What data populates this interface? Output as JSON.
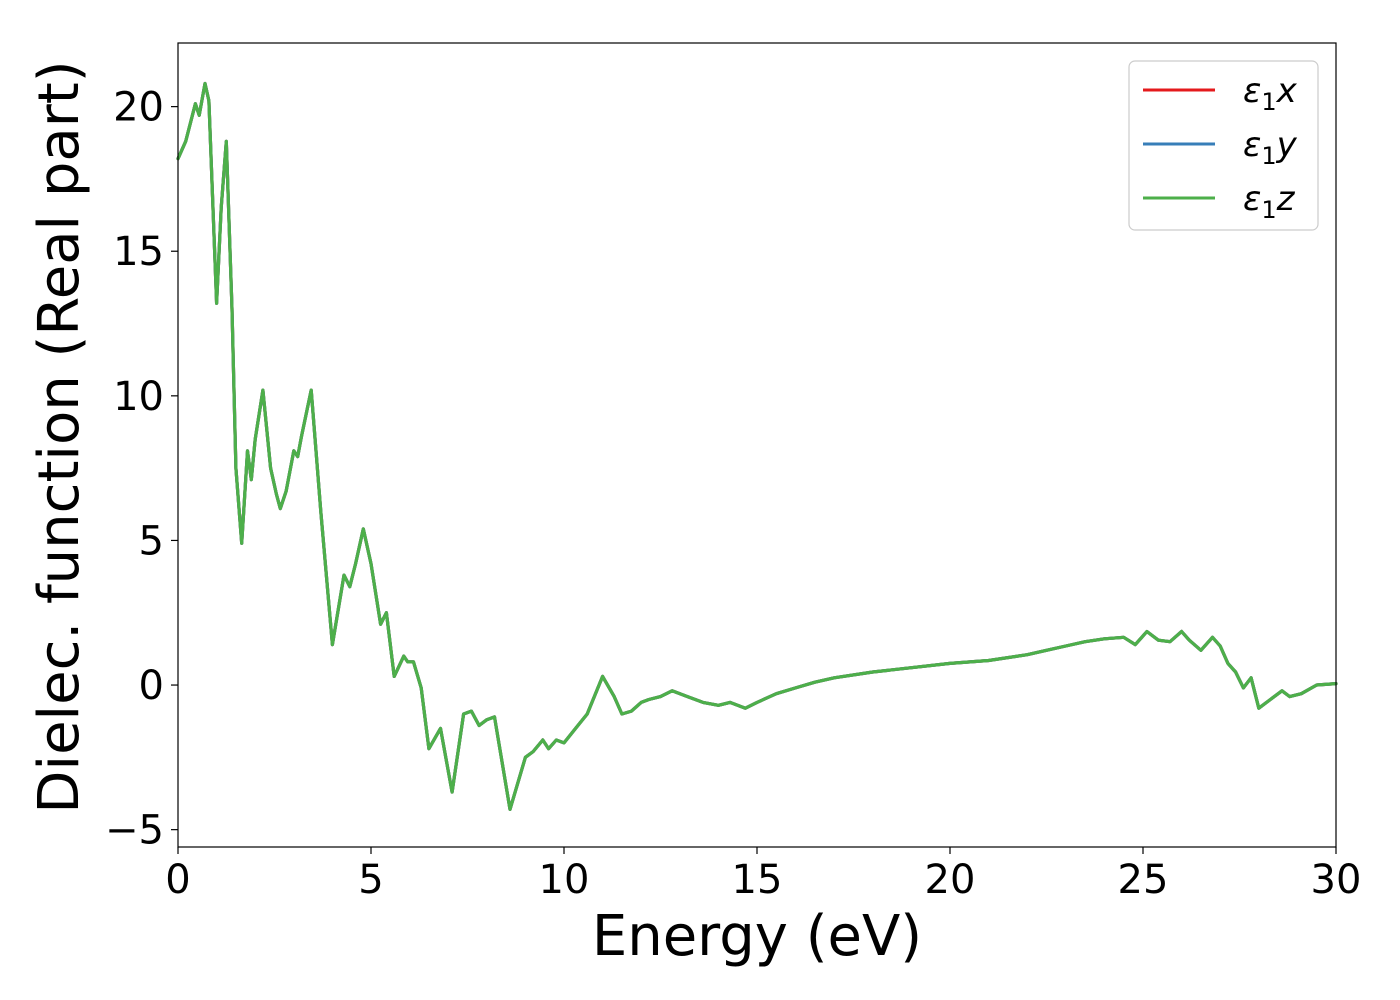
{
  "chart_data": {
    "type": "line",
    "xlabel": "Energy (eV)",
    "ylabel": "Dielec. function (Real part)",
    "xlim": [
      0,
      30
    ],
    "ylim": [
      -5.6,
      22.2
    ],
    "xticks": [
      0,
      5,
      10,
      15,
      20,
      25,
      30
    ],
    "yticks": [
      -5,
      0,
      5,
      10,
      15,
      20
    ],
    "xtick_labels": [
      "0",
      "5",
      "10",
      "15",
      "20",
      "25",
      "30"
    ],
    "ytick_labels": [
      "−5",
      "0",
      "5",
      "10",
      "15",
      "20"
    ],
    "grid": false,
    "legend_position": "top-right",
    "x": [
      0,
      0.2,
      0.45,
      0.55,
      0.7,
      0.8,
      1.0,
      1.12,
      1.25,
      1.4,
      1.5,
      1.65,
      1.8,
      1.9,
      2.0,
      2.2,
      2.4,
      2.55,
      2.65,
      2.8,
      3.0,
      3.1,
      3.2,
      3.45,
      3.7,
      4.0,
      4.3,
      4.45,
      4.6,
      4.8,
      5.0,
      5.25,
      5.4,
      5.6,
      5.85,
      5.95,
      6.1,
      6.3,
      6.5,
      6.8,
      7.1,
      7.4,
      7.6,
      7.8,
      8.0,
      8.2,
      8.6,
      9.0,
      9.2,
      9.45,
      9.6,
      9.8,
      10.0,
      10.3,
      10.6,
      11.0,
      11.3,
      11.5,
      11.75,
      12.0,
      12.2,
      12.5,
      12.8,
      13.2,
      13.6,
      14.0,
      14.3,
      14.7,
      15.0,
      15.5,
      16.0,
      16.5,
      17.0,
      18.0,
      19.0,
      20.0,
      21.0,
      22.0,
      22.5,
      23.0,
      23.5,
      24.0,
      24.5,
      24.8,
      25.1,
      25.4,
      25.7,
      26.0,
      26.2,
      26.5,
      26.8,
      27.0,
      27.2,
      27.4,
      27.6,
      27.8,
      28.0,
      28.3,
      28.6,
      28.8,
      29.1,
      29.5,
      30.0
    ],
    "series": [
      {
        "name": "x",
        "color": "#e41a1c",
        "values": [
          18.2,
          18.8,
          20.1,
          19.7,
          20.8,
          20.2,
          13.2,
          16.5,
          18.8,
          13.0,
          7.5,
          4.9,
          8.1,
          7.1,
          8.5,
          10.2,
          7.5,
          6.6,
          6.1,
          6.7,
          8.1,
          7.9,
          8.6,
          10.2,
          6.0,
          1.4,
          3.8,
          3.4,
          4.2,
          5.4,
          4.2,
          2.1,
          2.5,
          0.3,
          1.0,
          0.8,
          0.8,
          -0.1,
          -2.2,
          -1.5,
          -3.7,
          -1.0,
          -0.9,
          -1.4,
          -1.2,
          -1.1,
          -4.3,
          -2.5,
          -2.3,
          -1.9,
          -2.2,
          -1.9,
          -2.0,
          -1.5,
          -1.0,
          0.3,
          -0.4,
          -1.0,
          -0.9,
          -0.6,
          -0.5,
          -0.4,
          -0.2,
          -0.4,
          -0.6,
          -0.7,
          -0.6,
          -0.8,
          -0.6,
          -0.3,
          -0.1,
          0.1,
          0.25,
          0.45,
          0.6,
          0.75,
          0.85,
          1.05,
          1.2,
          1.35,
          1.5,
          1.6,
          1.65,
          1.4,
          1.85,
          1.55,
          1.5,
          1.85,
          1.55,
          1.2,
          1.65,
          1.35,
          0.75,
          0.45,
          -0.1,
          0.25,
          -0.8,
          -0.5,
          -0.2,
          -0.4,
          -0.3,
          0.0,
          0.05
        ]
      },
      {
        "name": "y",
        "color": "#377eb8",
        "values": [
          18.2,
          18.8,
          20.1,
          19.7,
          20.8,
          20.2,
          13.2,
          16.5,
          18.8,
          13.0,
          7.5,
          4.9,
          8.1,
          7.1,
          8.5,
          10.2,
          7.5,
          6.6,
          6.1,
          6.7,
          8.1,
          7.9,
          8.6,
          10.2,
          6.0,
          1.4,
          3.8,
          3.4,
          4.2,
          5.4,
          4.2,
          2.1,
          2.5,
          0.3,
          1.0,
          0.8,
          0.8,
          -0.1,
          -2.2,
          -1.5,
          -3.7,
          -1.0,
          -0.9,
          -1.4,
          -1.2,
          -1.1,
          -4.3,
          -2.5,
          -2.3,
          -1.9,
          -2.2,
          -1.9,
          -2.0,
          -1.5,
          -1.0,
          0.3,
          -0.4,
          -1.0,
          -0.9,
          -0.6,
          -0.5,
          -0.4,
          -0.2,
          -0.4,
          -0.6,
          -0.7,
          -0.6,
          -0.8,
          -0.6,
          -0.3,
          -0.1,
          0.1,
          0.25,
          0.45,
          0.6,
          0.75,
          0.85,
          1.05,
          1.2,
          1.35,
          1.5,
          1.6,
          1.65,
          1.4,
          1.85,
          1.55,
          1.5,
          1.85,
          1.55,
          1.2,
          1.65,
          1.35,
          0.75,
          0.45,
          -0.1,
          0.25,
          -0.8,
          -0.5,
          -0.2,
          -0.4,
          -0.3,
          0.0,
          0.05
        ]
      },
      {
        "name": "z",
        "color": "#4daf4a",
        "values": [
          18.2,
          18.8,
          20.1,
          19.7,
          20.8,
          20.2,
          13.2,
          16.5,
          18.8,
          13.0,
          7.5,
          4.9,
          8.1,
          7.1,
          8.5,
          10.2,
          7.5,
          6.6,
          6.1,
          6.7,
          8.1,
          7.9,
          8.6,
          10.2,
          6.0,
          1.4,
          3.8,
          3.4,
          4.2,
          5.4,
          4.2,
          2.1,
          2.5,
          0.3,
          1.0,
          0.8,
          0.8,
          -0.1,
          -2.2,
          -1.5,
          -3.7,
          -1.0,
          -0.9,
          -1.4,
          -1.2,
          -1.1,
          -4.3,
          -2.5,
          -2.3,
          -1.9,
          -2.2,
          -1.9,
          -2.0,
          -1.5,
          -1.0,
          0.3,
          -0.4,
          -1.0,
          -0.9,
          -0.6,
          -0.5,
          -0.4,
          -0.2,
          -0.4,
          -0.6,
          -0.7,
          -0.6,
          -0.8,
          -0.6,
          -0.3,
          -0.1,
          0.1,
          0.25,
          0.45,
          0.6,
          0.75,
          0.85,
          1.05,
          1.2,
          1.35,
          1.5,
          1.6,
          1.65,
          1.4,
          1.85,
          1.55,
          1.5,
          1.85,
          1.55,
          1.2,
          1.65,
          1.35,
          0.75,
          0.45,
          -0.1,
          0.25,
          -0.8,
          -0.5,
          -0.2,
          -0.4,
          -0.3,
          0.0,
          0.05
        ]
      }
    ],
    "legend": [
      {
        "symbol": "ε",
        "sub": "1",
        "suffix": "x",
        "color": "#e41a1c"
      },
      {
        "symbol": "ε",
        "sub": "1",
        "suffix": "y",
        "color": "#377eb8"
      },
      {
        "symbol": "ε",
        "sub": "1",
        "suffix": "z",
        "color": "#4daf4a"
      }
    ]
  }
}
